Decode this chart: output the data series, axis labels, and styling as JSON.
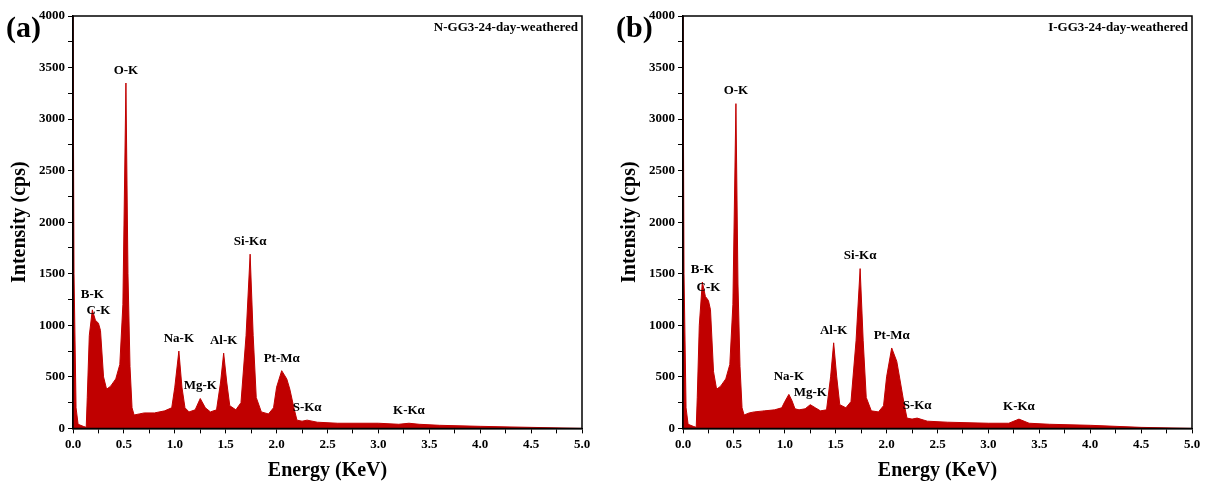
{
  "chart_data": [
    {
      "type": "area",
      "title": "(a)",
      "xlabel": "Energy (KeV)",
      "ylabel": "Intensity (cps)",
      "annotations": [
        "N-GG3-24-day-weathered",
        {
          "text": "B-K",
          "x": 0.19,
          "y": 1150
        },
        {
          "text": "C-K",
          "x": 0.25,
          "y": 1020
        },
        {
          "text": "O-K",
          "x": 0.52,
          "y": 3350
        },
        {
          "text": "Na-K",
          "x": 1.04,
          "y": 750
        },
        {
          "text": "Mg-K",
          "x": 1.25,
          "y": 290
        },
        {
          "text": "Al-K",
          "x": 1.48,
          "y": 730
        },
        {
          "text": "Si-Kα",
          "x": 1.74,
          "y": 1690
        },
        {
          "text": "Pt-Mα",
          "x": 2.05,
          "y": 560
        },
        {
          "text": "S-Kα",
          "x": 2.3,
          "y": 80
        },
        {
          "text": "K-Kα",
          "x": 3.3,
          "y": 50
        }
      ],
      "series": [
        {
          "color": "#c00000",
          "x": [
            0,
            0.01,
            0.03,
            0.05,
            0.1,
            0.13,
            0.14,
            0.16,
            0.19,
            0.22,
            0.25,
            0.27,
            0.3,
            0.33,
            0.37,
            0.42,
            0.46,
            0.49,
            0.52,
            0.54,
            0.56,
            0.58,
            0.6,
            0.65,
            0.7,
            0.8,
            0.9,
            0.97,
            1.0,
            1.04,
            1.07,
            1.1,
            1.14,
            1.2,
            1.25,
            1.3,
            1.35,
            1.41,
            1.45,
            1.48,
            1.51,
            1.54,
            1.6,
            1.65,
            1.7,
            1.74,
            1.77,
            1.8,
            1.85,
            1.92,
            1.97,
            2.0,
            2.05,
            2.1,
            2.13,
            2.17,
            2.2,
            2.25,
            2.3,
            2.4,
            2.6,
            3.0,
            3.2,
            3.3,
            3.4,
            3.6,
            4.0,
            4.5,
            5.0
          ],
          "values": [
            4000,
            1500,
            200,
            40,
            20,
            10,
            300,
            900,
            1150,
            1050,
            1020,
            950,
            500,
            380,
            410,
            480,
            620,
            1200,
            3350,
            1500,
            600,
            200,
            130,
            140,
            150,
            150,
            170,
            200,
            400,
            750,
            400,
            200,
            160,
            180,
            290,
            200,
            160,
            180,
            450,
            730,
            450,
            220,
            180,
            250,
            900,
            1690,
            900,
            300,
            160,
            140,
            200,
            400,
            560,
            480,
            380,
            200,
            80,
            70,
            80,
            60,
            50,
            50,
            40,
            50,
            40,
            30,
            20,
            10,
            0
          ]
        }
      ],
      "xlim": [
        0,
        5
      ],
      "xticks": [
        {
          "value": 0,
          "label": "0.0"
        },
        {
          "value": 0.25,
          "label": null
        },
        {
          "value": 0.5,
          "label": "0.5"
        },
        {
          "value": 0.75,
          "label": null
        },
        {
          "value": 1,
          "label": "1.0"
        },
        {
          "value": 1.25,
          "label": null
        },
        {
          "value": 1.5,
          "label": "1.5"
        },
        {
          "value": 1.75,
          "label": null
        },
        {
          "value": 2,
          "label": "2.0"
        },
        {
          "value": 2.25,
          "label": null
        },
        {
          "value": 2.5,
          "label": "2.5"
        },
        {
          "value": 2.75,
          "label": null
        },
        {
          "value": 3,
          "label": "3.0"
        },
        {
          "value": 3.25,
          "label": null
        },
        {
          "value": 3.5,
          "label": "3.5"
        },
        {
          "value": 3.75,
          "label": null
        },
        {
          "value": 4,
          "label": "4.0"
        },
        {
          "value": 4.25,
          "label": null
        },
        {
          "value": 4.5,
          "label": "4.5"
        },
        {
          "value": 4.75,
          "label": null
        },
        {
          "value": 5,
          "label": "5.0"
        }
      ],
      "ylim": [
        0,
        4000
      ],
      "yticks": [
        0,
        {
          "value": 250,
          "label": null
        },
        500,
        {
          "value": 750,
          "label": null
        },
        1000,
        {
          "value": 1250,
          "label": null
        },
        1500,
        {
          "value": 1750,
          "label": null
        },
        2000,
        {
          "value": 2250,
          "label": null
        },
        2500,
        {
          "value": 2750,
          "label": null
        },
        3000,
        {
          "value": 3250,
          "label": null
        },
        3500,
        {
          "value": 3750,
          "label": null
        },
        4000
      ],
      "grid": false,
      "legend": false
    },
    {
      "type": "area",
      "title": "(b)",
      "xlabel": "Energy (KeV)",
      "ylabel": "Intensity (cps)",
      "annotations": [
        "I-GG3-24-day-weathered",
        {
          "text": "B-K",
          "x": 0.19,
          "y": 1420
        },
        {
          "text": "C-K",
          "x": 0.25,
          "y": 1240
        },
        {
          "text": "O-K",
          "x": 0.52,
          "y": 3150
        },
        {
          "text": "Na-K",
          "x": 1.04,
          "y": 330
        },
        {
          "text": "Mg-K",
          "x": 1.25,
          "y": 230
        },
        {
          "text": "Al-K",
          "x": 1.48,
          "y": 830
        },
        {
          "text": "Si-Kα",
          "x": 1.74,
          "y": 1550
        },
        {
          "text": "Pt-Mα",
          "x": 2.05,
          "y": 780
        },
        {
          "text": "S-Kα",
          "x": 2.3,
          "y": 100
        },
        {
          "text": "K-Kα",
          "x": 3.3,
          "y": 90
        }
      ],
      "series": [
        {
          "color": "#c00000",
          "x": [
            0,
            0.01,
            0.03,
            0.05,
            0.1,
            0.13,
            0.14,
            0.16,
            0.19,
            0.22,
            0.25,
            0.27,
            0.3,
            0.33,
            0.37,
            0.42,
            0.46,
            0.49,
            0.52,
            0.54,
            0.56,
            0.58,
            0.6,
            0.65,
            0.7,
            0.8,
            0.9,
            0.97,
            1.0,
            1.04,
            1.07,
            1.1,
            1.14,
            1.2,
            1.25,
            1.3,
            1.35,
            1.41,
            1.45,
            1.48,
            1.51,
            1.54,
            1.6,
            1.65,
            1.7,
            1.74,
            1.77,
            1.8,
            1.85,
            1.92,
            1.97,
            2.0,
            2.05,
            2.1,
            2.13,
            2.17,
            2.2,
            2.25,
            2.3,
            2.4,
            2.6,
            3.0,
            3.2,
            3.3,
            3.4,
            3.6,
            4.0,
            4.5,
            5.0
          ],
          "values": [
            4000,
            1500,
            200,
            40,
            20,
            10,
            300,
            1000,
            1420,
            1280,
            1240,
            1150,
            550,
            380,
            410,
            480,
            620,
            1200,
            3150,
            1400,
            600,
            200,
            130,
            150,
            160,
            170,
            180,
            200,
            260,
            330,
            270,
            190,
            180,
            190,
            230,
            200,
            170,
            180,
            500,
            830,
            500,
            230,
            200,
            260,
            850,
            1550,
            850,
            300,
            170,
            160,
            220,
            500,
            780,
            650,
            480,
            250,
            100,
            90,
            100,
            70,
            60,
            50,
            50,
            90,
            50,
            40,
            30,
            10,
            0
          ]
        }
      ],
      "xlim": [
        0,
        5
      ],
      "xticks": [
        {
          "value": 0,
          "label": "0.0"
        },
        {
          "value": 0.25,
          "label": null
        },
        {
          "value": 0.5,
          "label": "0.5"
        },
        {
          "value": 0.75,
          "label": null
        },
        {
          "value": 1,
          "label": "1.0"
        },
        {
          "value": 1.25,
          "label": null
        },
        {
          "value": 1.5,
          "label": "1.5"
        },
        {
          "value": 1.75,
          "label": null
        },
        {
          "value": 2,
          "label": "2.0"
        },
        {
          "value": 2.25,
          "label": null
        },
        {
          "value": 2.5,
          "label": "2.5"
        },
        {
          "value": 2.75,
          "label": null
        },
        {
          "value": 3,
          "label": "3.0"
        },
        {
          "value": 3.25,
          "label": null
        },
        {
          "value": 3.5,
          "label": "3.5"
        },
        {
          "value": 3.75,
          "label": null
        },
        {
          "value": 4,
          "label": "4.0"
        },
        {
          "value": 4.25,
          "label": null
        },
        {
          "value": 4.5,
          "label": "4.5"
        },
        {
          "value": 4.75,
          "label": null
        },
        {
          "value": 5,
          "label": "5.0"
        }
      ],
      "ylim": [
        0,
        4000
      ],
      "yticks": [
        0,
        {
          "value": 250,
          "label": null
        },
        500,
        {
          "value": 750,
          "label": null
        },
        1000,
        {
          "value": 1250,
          "label": null
        },
        1500,
        {
          "value": 1750,
          "label": null
        },
        2000,
        {
          "value": 2250,
          "label": null
        },
        2500,
        {
          "value": 2750,
          "label": null
        },
        3000,
        {
          "value": 3250,
          "label": null
        },
        3500,
        {
          "value": 3750,
          "label": null
        },
        4000
      ],
      "grid": false,
      "legend": false
    }
  ]
}
